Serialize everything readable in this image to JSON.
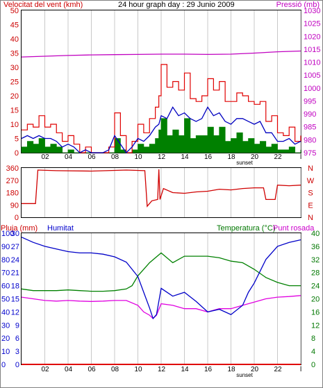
{
  "header": {
    "title": "24 hour graph day : 29 Junio 2009"
  },
  "colors": {
    "wind": "#e00000",
    "wind_avg": "#0000c0",
    "wind_gust_fill": "#008000",
    "pressure": "#c000c0",
    "direction": "#d00000",
    "humidity": "#0000c8",
    "temperature": "#008000",
    "dewpoint": "#e000e0",
    "rain": "#e00000",
    "grid": "#c8c8c8",
    "label_blue": "#0000cc",
    "label_green": "#007700",
    "label_red": "#cc0000"
  },
  "x_ticks": [
    "02",
    "04",
    "06",
    "08",
    "10",
    "12",
    "14",
    "16",
    "18",
    "20",
    "22",
    "l"
  ],
  "sunset_label": "sunset",
  "chart_data": [
    {
      "type": "line",
      "title": "24 hour graph day : 29 Junio 2009",
      "ylabel": "Velocitat del vent (kmh)",
      "ylabel_right": "Pressió (mb)",
      "ylim": [
        0,
        50
      ],
      "ylim_right": [
        975,
        1030
      ],
      "yticks": [
        "0",
        "5",
        "10",
        "15",
        "20",
        "25",
        "30",
        "35",
        "40",
        "45",
        "50"
      ],
      "yticks_right": [
        "975",
        "980",
        "985",
        "990",
        "995",
        "1000",
        "1005",
        "1010",
        "1015",
        "1020",
        "1025",
        "1030"
      ],
      "xlim": [
        0,
        24
      ],
      "series": [
        {
          "name": "Velocitat del vent (kmh)",
          "x": [
            0,
            0.5,
            1,
            1.5,
            2,
            2.5,
            3,
            3.5,
            4,
            4.5,
            5,
            5.5,
            6,
            6.5,
            7,
            7.5,
            8,
            8.5,
            9,
            9.5,
            10,
            10.5,
            11,
            11.5,
            11.8,
            12,
            12.5,
            13,
            13.5,
            14,
            14.5,
            15,
            15.5,
            16,
            16.5,
            17,
            17.5,
            18,
            18.5,
            19,
            19.5,
            20,
            20.5,
            21,
            21.5,
            22,
            22.5,
            23,
            23.5,
            24
          ],
          "y": [
            8,
            10,
            9,
            13,
            9,
            10,
            7,
            4,
            6,
            3,
            0,
            2,
            0,
            0,
            0,
            2,
            14,
            6,
            0,
            4,
            10,
            7,
            12,
            16,
            20,
            31,
            23,
            25,
            22,
            28,
            19,
            18,
            20,
            26,
            22,
            25,
            18,
            18,
            21,
            20,
            18,
            17,
            18,
            11,
            13,
            7,
            6,
            9,
            4,
            6
          ]
        },
        {
          "name": "",
          "x": [
            0,
            0.5,
            1,
            1.5,
            2,
            2.5,
            3,
            3.5,
            4,
            4.5,
            5,
            5.5,
            6,
            6.5,
            7,
            7.5,
            8,
            8.5,
            9,
            9.5,
            10,
            10.5,
            11,
            11.5,
            11.8,
            12,
            12.5,
            13,
            13.5,
            14,
            14.5,
            15,
            15.5,
            16,
            16.5,
            17,
            17.5,
            18,
            18.5,
            19,
            19.5,
            20,
            20.5,
            21,
            21.5,
            22,
            22.5,
            23,
            23.5,
            24
          ],
          "y": [
            5,
            6,
            5,
            6,
            5,
            5,
            4,
            2,
            3,
            2,
            0,
            1,
            0,
            0,
            0,
            1,
            6,
            3,
            0,
            2,
            5,
            4,
            6,
            9,
            10,
            13,
            12,
            16,
            13,
            14,
            12,
            11,
            12,
            16,
            13,
            14,
            11,
            10,
            12,
            12,
            11,
            10,
            11,
            7,
            7,
            4,
            4,
            5,
            3,
            4
          ]
        },
        {
          "name": "",
          "x": [
            0,
            0.5,
            1,
            1.5,
            2,
            2.5,
            3,
            3.5,
            4,
            4.5,
            5,
            5.5,
            6,
            6.5,
            7,
            7.5,
            8,
            8.5,
            9,
            9.5,
            10,
            10.5,
            11,
            11.5,
            11.8,
            12,
            12.5,
            13,
            13.5,
            14,
            14.5,
            15,
            15.5,
            16,
            16.5,
            17,
            17.5,
            18,
            18.5,
            19,
            19.5,
            20,
            20.5,
            21,
            21.5,
            22,
            22.5,
            23,
            23.5,
            24
          ],
          "y": [
            2,
            4,
            3,
            5,
            2,
            3,
            2,
            0,
            1,
            0,
            0,
            0,
            0,
            0,
            0,
            0,
            5,
            1,
            0,
            1,
            3,
            2,
            3,
            5,
            8,
            12,
            6,
            8,
            6,
            12,
            5,
            6,
            6,
            9,
            6,
            9,
            4,
            5,
            7,
            4,
            5,
            3,
            4,
            2,
            3,
            1,
            1,
            2,
            0,
            1
          ]
        },
        {
          "name": "Pressió (mb)",
          "x": [
            0,
            2,
            4,
            6,
            8,
            10,
            12,
            14,
            16,
            18,
            20,
            22,
            24
          ],
          "y": [
            1012,
            1012.3,
            1012.6,
            1012.8,
            1012.9,
            1013.0,
            1013.1,
            1013.1,
            1013.0,
            1013.1,
            1013.5,
            1014.0,
            1014.3
          ],
          "axis": "right"
        }
      ]
    },
    {
      "type": "line",
      "ylim": [
        0,
        360
      ],
      "yticks": [
        "0",
        "90",
        "180",
        "270",
        "360"
      ],
      "yticks_right": [
        "N",
        "W",
        "S",
        "E",
        "N"
      ],
      "xlim": [
        0,
        24
      ],
      "series": [
        {
          "name": "",
          "x": [
            0,
            1.2,
            1.4,
            3,
            6,
            9,
            10.6,
            10.8,
            11.2,
            11.7,
            11.8,
            11.9,
            12.2,
            13,
            14,
            15,
            16,
            17,
            18,
            19,
            20,
            20.8,
            21.0,
            21.8,
            22.0,
            23,
            24
          ],
          "y": [
            100,
            100,
            345,
            340,
            337,
            345,
            340,
            80,
            120,
            130,
            350,
            130,
            210,
            180,
            175,
            185,
            190,
            205,
            200,
            210,
            215,
            215,
            130,
            130,
            235,
            230,
            235
          ]
        }
      ]
    },
    {
      "type": "line",
      "ylabel": "Pluja (mm)",
      "ylabel2": "Humitat",
      "ylabel_right": "Temperatura (°C)",
      "ylabel_right2": "Punt rosada",
      "yticks_rain": [
        "0",
        "3",
        "6",
        "9",
        "12",
        "15",
        "18",
        "21",
        "24",
        "27",
        "30"
      ],
      "yticks_hum": [
        "0",
        "10",
        "20",
        "30",
        "40",
        "50",
        "60",
        "70",
        "80",
        "90",
        "100"
      ],
      "yticks_temp": [
        "0",
        "4",
        "8",
        "12",
        "16",
        "20",
        "24",
        "28",
        "32",
        "36",
        "40"
      ],
      "ylim_rain": [
        0,
        30
      ],
      "ylim_right": [
        0,
        40
      ],
      "xlim": [
        0,
        24
      ],
      "series": [
        {
          "name": "Humitat",
          "x": [
            0,
            1,
            2,
            3,
            4,
            5,
            6,
            7,
            8,
            9,
            10,
            10.5,
            11,
            11.3,
            11.6,
            12,
            13,
            14,
            15,
            16,
            17,
            18,
            19,
            19.5,
            20,
            21,
            22,
            23,
            24
          ],
          "y": [
            97,
            93,
            90,
            88,
            86,
            85,
            85,
            84,
            82,
            78,
            67,
            55,
            43,
            35,
            38,
            58,
            52,
            55,
            48,
            40,
            42,
            38,
            45,
            55,
            62,
            80,
            90,
            93,
            95
          ]
        },
        {
          "name": "Temperatura (°C)",
          "x": [
            0,
            1,
            2,
            3,
            4,
            5,
            6,
            7,
            8,
            9,
            9.5,
            10,
            11,
            12,
            13,
            14,
            15,
            16,
            17,
            18,
            19,
            20,
            21,
            22,
            23,
            24
          ],
          "y": [
            23,
            22.5,
            22.5,
            22.5,
            22.7,
            22.5,
            22.3,
            22.3,
            22.5,
            23,
            24,
            27,
            31,
            34,
            31,
            33,
            33,
            33,
            32.5,
            31.5,
            31,
            29,
            26.5,
            25,
            24,
            24
          ]
        },
        {
          "name": "Punt rosada",
          "x": [
            0,
            1,
            2,
            3,
            4,
            5,
            6,
            7,
            8,
            9,
            10,
            10.5,
            11,
            11.3,
            11.6,
            12,
            13,
            14,
            15,
            16,
            17,
            18,
            19,
            20,
            21,
            22,
            23,
            24
          ],
          "y": [
            20.5,
            20,
            19.5,
            19.3,
            19.5,
            19.3,
            19.2,
            19.3,
            19.5,
            19.5,
            18,
            16,
            15,
            14,
            15,
            18.5,
            18,
            17,
            17,
            16,
            17,
            17,
            18,
            19,
            20,
            20.5,
            20.7,
            21
          ]
        },
        {
          "name": "Pluja (mm)",
          "x": [
            0,
            24
          ],
          "y": [
            0,
            0
          ]
        }
      ]
    }
  ]
}
